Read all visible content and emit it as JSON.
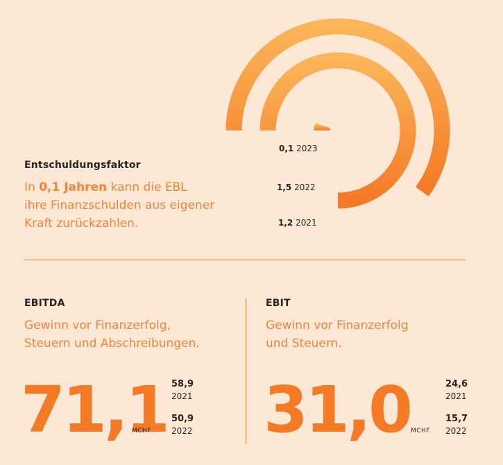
{
  "colors": {
    "background": "#fde8d6",
    "accent": "#f47a25",
    "text": "#2b2320"
  },
  "debt": {
    "title": "Entschuldungsfaktor",
    "text_pre": "In ",
    "text_bold": "0,1 Jahren",
    "text_post": " kann die EBL",
    "line2": "ihre Finanzschulden aus eigener",
    "line3": "Kraft zurückzahlen."
  },
  "chart_data": {
    "type": "radial-bar",
    "series": [
      {
        "value": 1.2,
        "value_label": "1,2",
        "year": "2021"
      },
      {
        "value": 1.5,
        "value_label": "1,5",
        "year": "2022"
      },
      {
        "value": 0.1,
        "value_label": "0,1",
        "year": "2023"
      }
    ]
  },
  "ebitda": {
    "title": "EBITDA",
    "line1": "Gewinn vor Finanzerfolg,",
    "line2": "Steuern und Abschreibungen.",
    "value": "71,1",
    "unit": "MCHF",
    "compare": [
      {
        "value": "58,9",
        "year": "2021"
      },
      {
        "value": "50,9",
        "year": "2022"
      }
    ]
  },
  "ebit": {
    "title": "EBIT",
    "line1": "Gewinn vor Finanzerfolg",
    "line2": "und Steuern.",
    "value": "31,0",
    "unit": "MCHF",
    "compare": [
      {
        "value": "24,6",
        "year": "2021"
      },
      {
        "value": "15,7",
        "year": "2022"
      }
    ]
  }
}
